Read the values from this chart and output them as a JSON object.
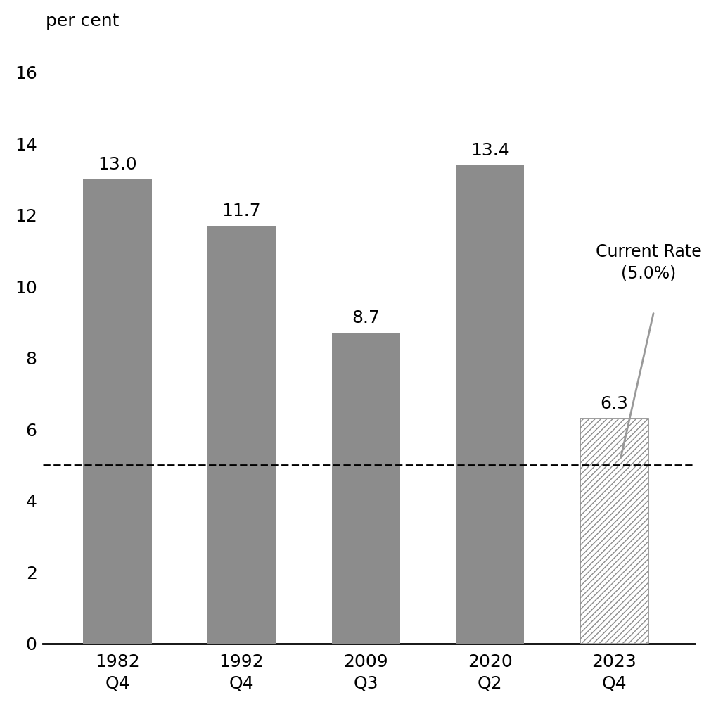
{
  "categories": [
    "1982\nQ4",
    "1992\nQ4",
    "2009\nQ3",
    "2020\nQ2",
    "2023\nQ4"
  ],
  "values": [
    13.0,
    11.7,
    8.7,
    13.4,
    6.3
  ],
  "bar_colors": [
    "solid",
    "solid",
    "solid",
    "solid",
    "hatched"
  ],
  "solid_bar_color": "#8c8c8c",
  "hatch_color": "#8c8c8c",
  "ylabel_line1": "per cent",
  "ylim": [
    0,
    16
  ],
  "yticks": [
    0,
    2,
    4,
    6,
    8,
    10,
    12,
    14,
    16
  ],
  "dashed_line_y": 5.0,
  "current_rate_label": "Current Rate\n(5.0%)",
  "background_color": "#ffffff",
  "label_fontsize": 18,
  "tick_fontsize": 18,
  "annotation_fontsize": 17,
  "bar_width": 0.55
}
